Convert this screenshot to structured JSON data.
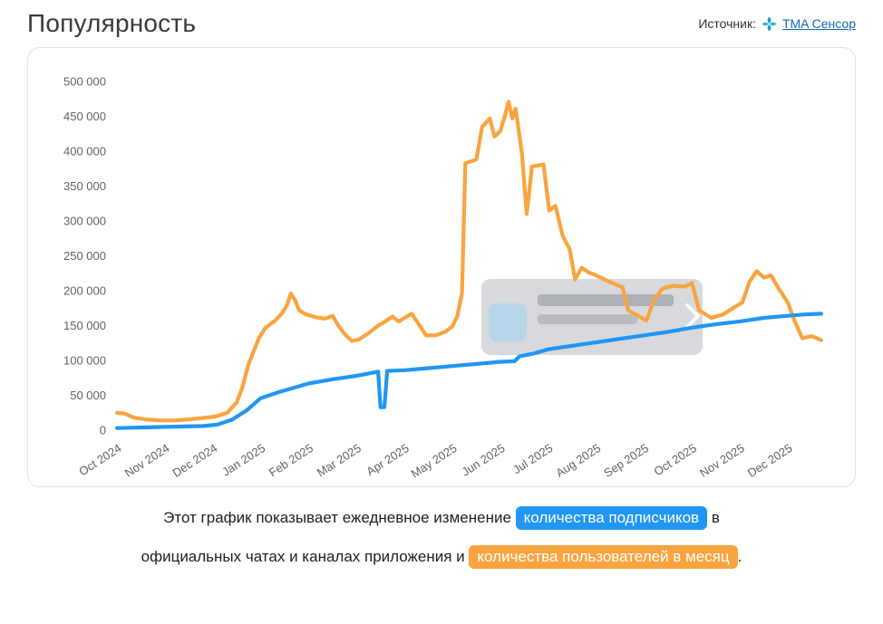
{
  "header": {
    "title": "Популярность",
    "source_label": "Источник:",
    "source_link": "TMA Сенсор"
  },
  "caption": {
    "line1_text": "Этот график показывает ежедневное изменение",
    "badge_blue": "количества подписчиков",
    "line1_suffix": "в",
    "line2_text": "официальных чатах и каналах приложения и",
    "badge_orange": "количества пользователей в месяц",
    "line2_suffix": "."
  },
  "colors": {
    "subscribers_blue": "#2196f3",
    "monthly_users_orange": "#f9a43f",
    "link_blue": "#1668b0",
    "axis_label_gray": "#5f6368"
  },
  "chart_data": {
    "type": "line",
    "title": "",
    "xlabel": "",
    "ylabel": "",
    "grid": false,
    "legend_position": "none",
    "x_unit": "month index, 0 = Oct 2024",
    "xtick_labels": [
      "Oct 2024",
      "Nov 2024",
      "Dec 2024",
      "Jan 2025",
      "Feb 2025",
      "Mar 2025",
      "Apr 2025",
      "May 2025",
      "Jun 2025",
      "Jul 2025",
      "Aug 2025",
      "Sep 2025",
      "Oct 2025",
      "Nov 2025",
      "Dec 2025"
    ],
    "ylim": [
      0,
      500000
    ],
    "ytick_step": 50000,
    "ytick_labels": [
      "0",
      "50 000",
      "100 000",
      "150 000",
      "200 000",
      "250 000",
      "300 000",
      "350 000",
      "400 000",
      "450 000",
      "500 000"
    ],
    "series": [
      {
        "key": "subscribers",
        "name": "количества подписчиков",
        "color": "#2196f3",
        "points": [
          [
            0,
            3000
          ],
          [
            0.6,
            4000
          ],
          [
            1.2,
            5000
          ],
          [
            1.8,
            6000
          ],
          [
            2.1,
            8000
          ],
          [
            2.4,
            15000
          ],
          [
            2.7,
            28000
          ],
          [
            3.0,
            46000
          ],
          [
            3.4,
            55000
          ],
          [
            3.8,
            63000
          ],
          [
            4.0,
            67000
          ],
          [
            4.5,
            73000
          ],
          [
            5.0,
            78000
          ],
          [
            5.3,
            82000
          ],
          [
            5.45,
            84000
          ],
          [
            5.5,
            33000
          ],
          [
            5.58,
            33000
          ],
          [
            5.64,
            85000
          ],
          [
            6.0,
            86000
          ],
          [
            6.5,
            89000
          ],
          [
            7.0,
            92000
          ],
          [
            7.5,
            95000
          ],
          [
            8.0,
            98000
          ],
          [
            8.3,
            99000
          ],
          [
            8.4,
            106000
          ],
          [
            8.7,
            110000
          ],
          [
            9.0,
            116000
          ],
          [
            9.5,
            121000
          ],
          [
            10.0,
            126000
          ],
          [
            10.5,
            131000
          ],
          [
            11.0,
            136000
          ],
          [
            11.5,
            141000
          ],
          [
            12.0,
            147000
          ],
          [
            12.5,
            152000
          ],
          [
            13.0,
            156000
          ],
          [
            13.5,
            161000
          ],
          [
            14.0,
            164000
          ],
          [
            14.35,
            166000
          ],
          [
            14.7,
            167000
          ]
        ]
      },
      {
        "key": "monthly-users",
        "name": "количества пользователей в месяц",
        "color": "#f9a43f",
        "points": [
          [
            0,
            25000
          ],
          [
            0.15,
            24000
          ],
          [
            0.35,
            18000
          ],
          [
            0.6,
            15500
          ],
          [
            0.9,
            14000
          ],
          [
            1.2,
            14000
          ],
          [
            1.5,
            15500
          ],
          [
            1.8,
            17500
          ],
          [
            2.05,
            19500
          ],
          [
            2.3,
            25000
          ],
          [
            2.5,
            40000
          ],
          [
            2.62,
            62000
          ],
          [
            2.74,
            93000
          ],
          [
            2.85,
            113000
          ],
          [
            2.97,
            133000
          ],
          [
            3.1,
            147000
          ],
          [
            3.3,
            157000
          ],
          [
            3.45,
            168000
          ],
          [
            3.55,
            180000
          ],
          [
            3.63,
            196000
          ],
          [
            3.72,
            186000
          ],
          [
            3.8,
            172000
          ],
          [
            3.95,
            166000
          ],
          [
            4.15,
            162000
          ],
          [
            4.35,
            160000
          ],
          [
            4.5,
            164000
          ],
          [
            4.62,
            150000
          ],
          [
            4.75,
            138000
          ],
          [
            4.9,
            128000
          ],
          [
            5.05,
            130000
          ],
          [
            5.25,
            139000
          ],
          [
            5.45,
            150000
          ],
          [
            5.6,
            156000
          ],
          [
            5.75,
            163000
          ],
          [
            5.88,
            156000
          ],
          [
            6.0,
            161000
          ],
          [
            6.15,
            167000
          ],
          [
            6.3,
            152000
          ],
          [
            6.45,
            136000
          ],
          [
            6.65,
            136000
          ],
          [
            6.85,
            141000
          ],
          [
            7.0,
            149000
          ],
          [
            7.1,
            163000
          ],
          [
            7.2,
            196000
          ],
          [
            7.27,
            383000
          ],
          [
            7.5,
            388000
          ],
          [
            7.62,
            435000
          ],
          [
            7.78,
            447000
          ],
          [
            7.88,
            421000
          ],
          [
            8.0,
            429000
          ],
          [
            8.1,
            452000
          ],
          [
            8.17,
            471000
          ],
          [
            8.25,
            447000
          ],
          [
            8.32,
            461000
          ],
          [
            8.45,
            397000
          ],
          [
            8.55,
            310000
          ],
          [
            8.66,
            378000
          ],
          [
            8.9,
            381000
          ],
          [
            9.02,
            315000
          ],
          [
            9.15,
            322000
          ],
          [
            9.3,
            279000
          ],
          [
            9.45,
            259000
          ],
          [
            9.56,
            216000
          ],
          [
            9.7,
            233000
          ],
          [
            9.85,
            226000
          ],
          [
            10.0,
            222000
          ],
          [
            10.3,
            212000
          ],
          [
            10.55,
            205000
          ],
          [
            10.67,
            172000
          ],
          [
            10.9,
            163000
          ],
          [
            11.05,
            157000
          ],
          [
            11.2,
            186000
          ],
          [
            11.38,
            203000
          ],
          [
            11.6,
            207000
          ],
          [
            11.85,
            206000
          ],
          [
            12.0,
            211000
          ],
          [
            12.15,
            172000
          ],
          [
            12.4,
            161000
          ],
          [
            12.65,
            166000
          ],
          [
            12.9,
            177000
          ],
          [
            13.05,
            183000
          ],
          [
            13.2,
            213000
          ],
          [
            13.35,
            228000
          ],
          [
            13.5,
            219000
          ],
          [
            13.65,
            222000
          ],
          [
            13.8,
            204000
          ],
          [
            14.0,
            183000
          ],
          [
            14.15,
            155000
          ],
          [
            14.3,
            132000
          ],
          [
            14.5,
            135000
          ],
          [
            14.7,
            129000
          ]
        ]
      }
    ]
  }
}
